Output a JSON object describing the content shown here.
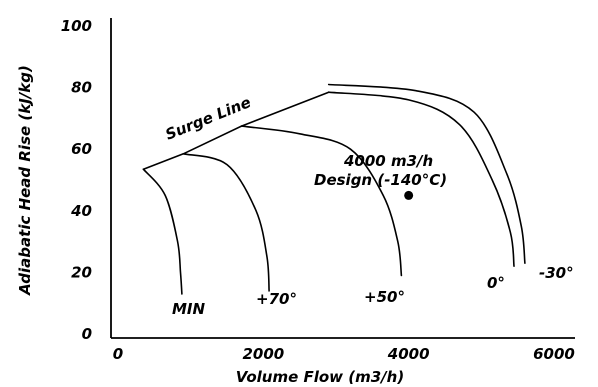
{
  "chart_data": {
    "type": "line",
    "xlabel": "Volume Flow (m3/h)",
    "ylabel": "Adiabatic Head Rise (kJ/kg)",
    "xlim": [
      0,
      6000
    ],
    "ylim": [
      0,
      100
    ],
    "xticks": [
      "0",
      "2000",
      "4000",
      "6000"
    ],
    "yticks": [
      "0",
      "20",
      "40",
      "60",
      "80",
      "100"
    ],
    "surge_line": {
      "label": "Surge Line",
      "x": [
        350,
        900,
        1700,
        2900
      ],
      "y": [
        53.5,
        58.5,
        67.5,
        78.5
      ]
    },
    "series": [
      {
        "name": "MIN",
        "x": [
          350,
          650,
          820,
          860,
          880
        ],
        "y": [
          53.5,
          45,
          30,
          20,
          13
        ]
      },
      {
        "name": "+70°",
        "x": [
          900,
          1500,
          1900,
          2050,
          2080
        ],
        "y": [
          58.5,
          55,
          40,
          25,
          14
        ]
      },
      {
        "name": "+50°",
        "x": [
          1700,
          2500,
          3200,
          3650,
          3850,
          3900
        ],
        "y": [
          67.5,
          65,
          60,
          45,
          30,
          19
        ]
      },
      {
        "name": "0°",
        "x": [
          2900,
          4000,
          4700,
          5150,
          5400,
          5450
        ],
        "y": [
          78.5,
          76,
          68,
          50,
          33,
          22
        ]
      },
      {
        "name": "-30°",
        "x": [
          2900,
          4100,
          4900,
          5350,
          5550,
          5600
        ],
        "y": [
          81,
          79,
          72,
          52,
          35,
          23
        ]
      }
    ],
    "design_point": {
      "x": 4000,
      "y": 45,
      "label_line1": "4000 m3/h",
      "label_line2": "Design (-140°C)"
    }
  }
}
